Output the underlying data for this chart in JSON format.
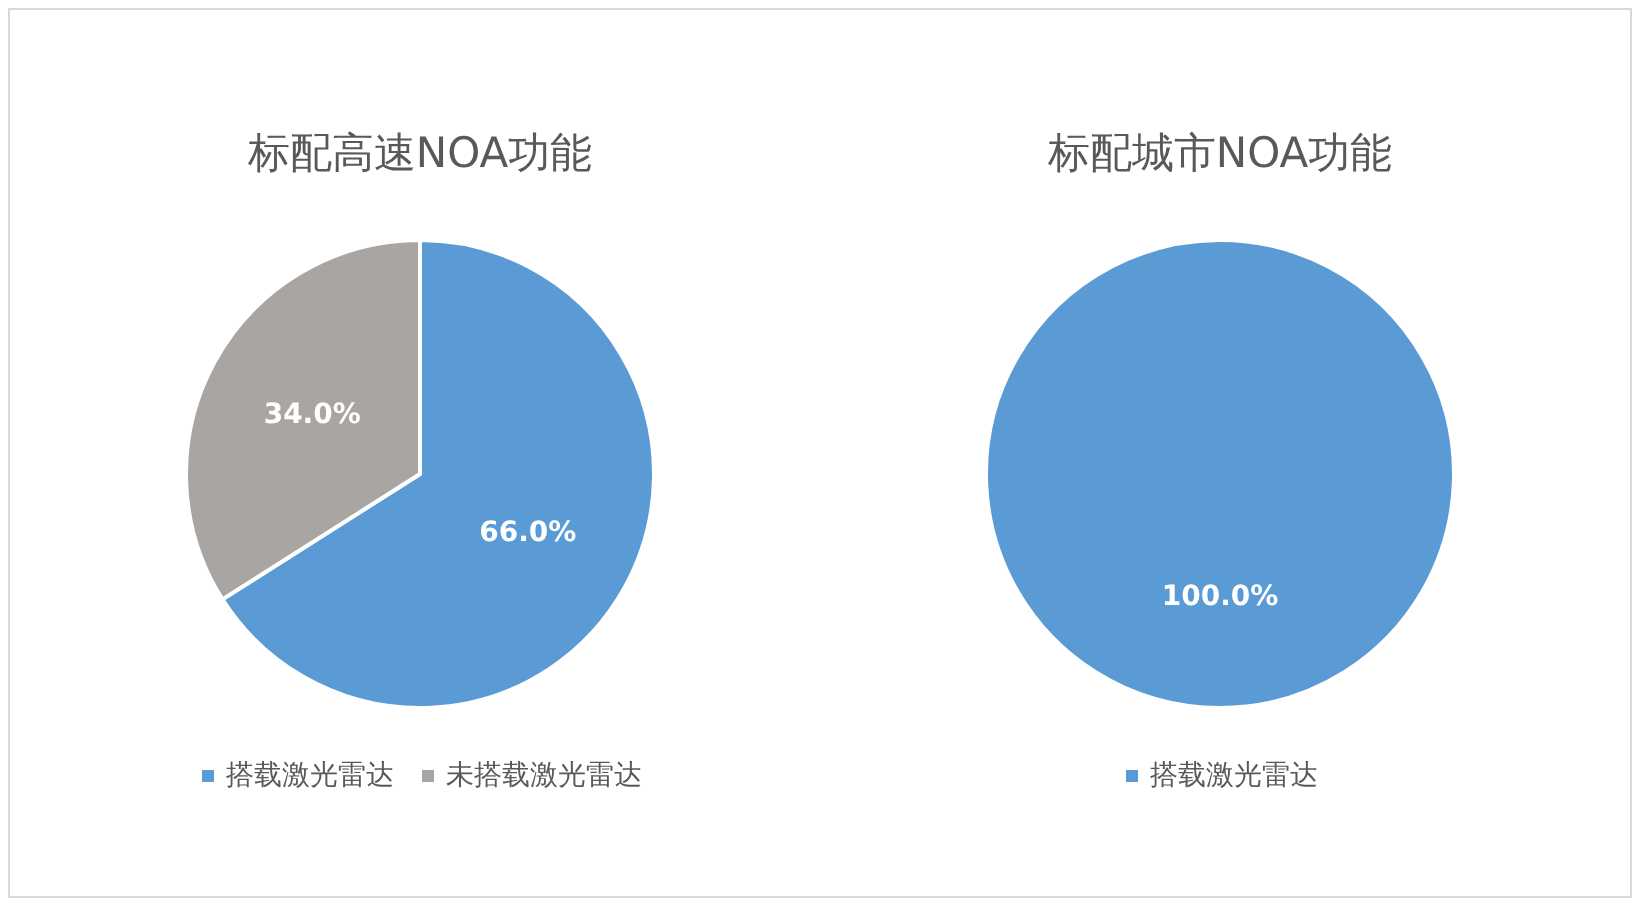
{
  "chart_data": [
    {
      "type": "pie",
      "title": "标配高速NOA功能",
      "categories": [
        "搭载激光雷达",
        "未搭载激光雷达"
      ],
      "values": [
        66.0,
        34.0
      ],
      "colors": [
        "#5b9bd5",
        "#a9a5a2"
      ],
      "value_labels": [
        "66.0%",
        "34.0%"
      ],
      "legend": "bottom"
    },
    {
      "type": "pie",
      "title": "标配城市NOA功能",
      "categories": [
        "搭载激光雷达"
      ],
      "values": [
        100.0
      ],
      "colors": [
        "#5b9bd5"
      ],
      "value_labels": [
        "100.0%"
      ],
      "legend": "bottom"
    }
  ]
}
